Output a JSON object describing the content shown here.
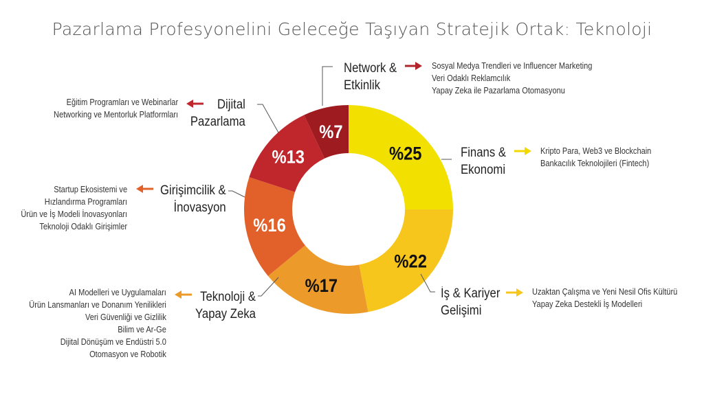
{
  "title": "Pazarlama Profesyonelini Geleceğe Taşıyan Stratejik Ortak: Teknoloji",
  "colors": {
    "finans": "#F2E100",
    "is_kariyer": "#F7C61C",
    "teknoloji": "#EC9A29",
    "girisimcilik": "#E2602A",
    "dijital": "#C0272D",
    "network": "#9E1B20"
  },
  "chart_data": {
    "type": "pie",
    "donut": true,
    "categories": [
      "Finans & Ekonomi",
      "İş & Kariyer Gelişimi",
      "Teknoloji & Yapay Zeka",
      "Girişimcilik & İnovasyon",
      "Dijital Pazarlama",
      "Network & Etkinlik"
    ],
    "values": [
      25,
      22,
      17,
      16,
      13,
      7
    ],
    "labels": [
      "%25",
      "%22",
      "%17",
      "%16",
      "%13",
      "%7"
    ]
  },
  "categories": {
    "network": [
      "Network &",
      "Etkinlik"
    ],
    "finans": [
      "Finans &",
      "Ekonomi"
    ],
    "is_kariyer": [
      "İş & Kariyer",
      "Gelişimi"
    ],
    "teknoloji": [
      "Teknoloji &",
      "Yapay Zeka"
    ],
    "girisimcilik": [
      "Girişimcilik &",
      "İnovasyon"
    ],
    "dijital": [
      "Dijital",
      "Pazarlama"
    ]
  },
  "items": {
    "network": [
      "Sosyal Medya Trendleri ve Influencer Marketing",
      "Veri Odaklı Reklamcılık",
      "Yapay Zeka ile Pazarlama Otomasyonu"
    ],
    "finans": [
      "Kripto Para, Web3 ve Blockchain",
      "Bankacılık Teknolojileri (Fintech)"
    ],
    "is_kariyer": [
      "Uzaktan Çalışma ve Yeni Nesil Ofis Kültürü",
      "Yapay Zeka Destekli İş Modelleri"
    ],
    "teknoloji": [
      "AI Modelleri ve Uygulamaları",
      "Ürün Lansmanları ve Donanım Yenilikleri",
      "Veri Güvenliği ve Gizlilik",
      "Bilim ve Ar-Ge",
      "Dijital Dönüşüm ve Endüstri 5.0",
      "Otomasyon ve Robotik"
    ],
    "girisimcilik": [
      "Startup Ekosistemi ve",
      "Hızlandırma Programları",
      "Ürün ve İş Modeli İnovasyonları",
      "Teknoloji Odaklı Girişimler"
    ],
    "dijital": [
      "Eğitim Programları ve Webinarlar",
      "Networking ve Mentorluk Platformları"
    ]
  }
}
